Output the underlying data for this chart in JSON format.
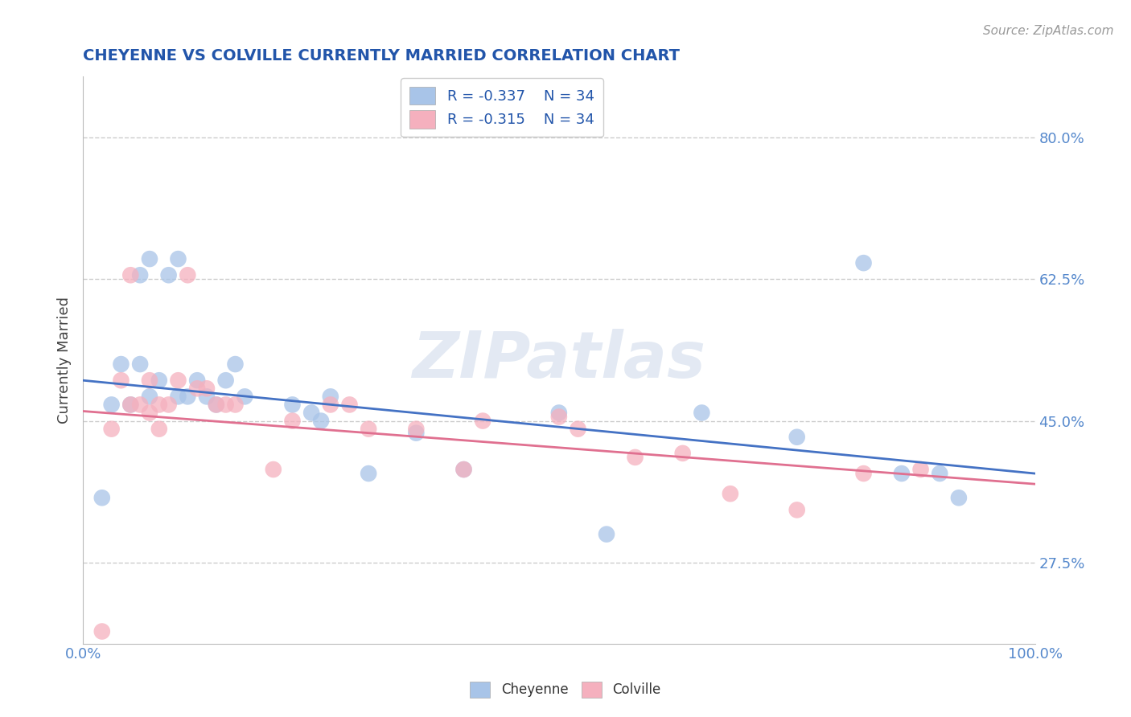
{
  "title": "CHEYENNE VS COLVILLE CURRENTLY MARRIED CORRELATION CHART",
  "source": "Source: ZipAtlas.com",
  "ylabel": "Currently Married",
  "watermark": "ZIPatlas",
  "cheyenne_R": -0.337,
  "cheyenne_N": 34,
  "colville_R": -0.315,
  "colville_N": 34,
  "cheyenne_color": "#a8c4e8",
  "colville_color": "#f5b0be",
  "cheyenne_line_color": "#4472c4",
  "colville_line_color": "#e07090",
  "title_color": "#2255aa",
  "source_color": "#999999",
  "legend_text_color": "#2255aa",
  "grid_color": "#cccccc",
  "background_color": "#ffffff",
  "tick_color": "#5588cc",
  "xlim": [
    0.0,
    1.0
  ],
  "ylim": [
    0.175,
    0.875
  ],
  "yticks": [
    0.275,
    0.45,
    0.625,
    0.8
  ],
  "ytick_labels": [
    "27.5%",
    "45.0%",
    "62.5%",
    "80.0%"
  ],
  "cheyenne_x": [
    0.02,
    0.03,
    0.04,
    0.05,
    0.06,
    0.06,
    0.07,
    0.07,
    0.08,
    0.09,
    0.1,
    0.1,
    0.11,
    0.12,
    0.13,
    0.14,
    0.15,
    0.16,
    0.17,
    0.22,
    0.24,
    0.25,
    0.26,
    0.3,
    0.35,
    0.4,
    0.5,
    0.55,
    0.65,
    0.75,
    0.82,
    0.86,
    0.9,
    0.92
  ],
  "cheyenne_y": [
    0.355,
    0.47,
    0.52,
    0.47,
    0.52,
    0.63,
    0.48,
    0.65,
    0.5,
    0.63,
    0.48,
    0.65,
    0.48,
    0.5,
    0.48,
    0.47,
    0.5,
    0.52,
    0.48,
    0.47,
    0.46,
    0.45,
    0.48,
    0.385,
    0.435,
    0.39,
    0.46,
    0.31,
    0.46,
    0.43,
    0.645,
    0.385,
    0.385,
    0.355
  ],
  "colville_x": [
    0.02,
    0.03,
    0.04,
    0.05,
    0.05,
    0.06,
    0.07,
    0.07,
    0.08,
    0.08,
    0.09,
    0.1,
    0.11,
    0.12,
    0.13,
    0.14,
    0.15,
    0.16,
    0.2,
    0.22,
    0.26,
    0.28,
    0.3,
    0.35,
    0.4,
    0.42,
    0.5,
    0.52,
    0.58,
    0.63,
    0.68,
    0.75,
    0.82,
    0.88
  ],
  "colville_y": [
    0.19,
    0.44,
    0.5,
    0.47,
    0.63,
    0.47,
    0.46,
    0.5,
    0.47,
    0.44,
    0.47,
    0.5,
    0.63,
    0.49,
    0.49,
    0.47,
    0.47,
    0.47,
    0.39,
    0.45,
    0.47,
    0.47,
    0.44,
    0.44,
    0.39,
    0.45,
    0.455,
    0.44,
    0.405,
    0.41,
    0.36,
    0.34,
    0.385,
    0.39
  ]
}
